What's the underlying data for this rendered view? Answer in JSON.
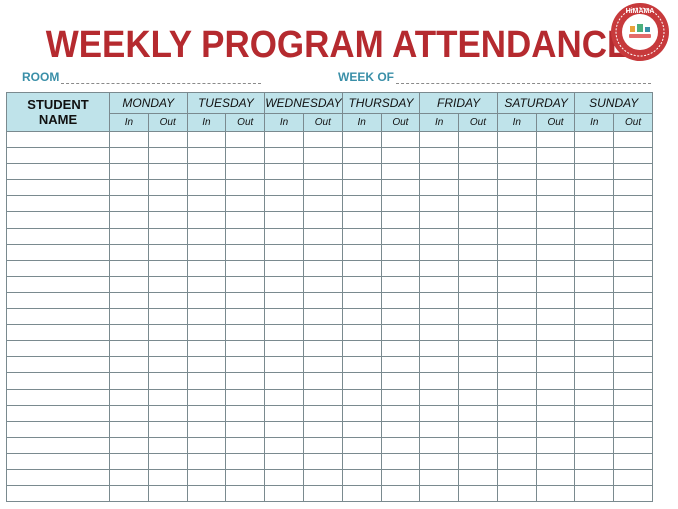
{
  "title": "WEEKLY PROGRAM ATTENDANCE",
  "room_label": "ROOM",
  "week_label": "WEEK OF",
  "logo": {
    "text": "HiMAMA",
    "icon": "himama-seal-logo",
    "color": "#c73a3c"
  },
  "table": {
    "name_header": "STUDENT NAME",
    "days": [
      "MONDAY",
      "TUESDAY",
      "WEDNESDAY",
      "THURSDAY",
      "FRIDAY",
      "SATURDAY",
      "SUNDAY"
    ],
    "in_label": "In",
    "out_label": "Out"
  },
  "colors": {
    "title": "#b52a2f",
    "accent": "#3a8fa8",
    "header_bg": "#bfe3ea"
  }
}
